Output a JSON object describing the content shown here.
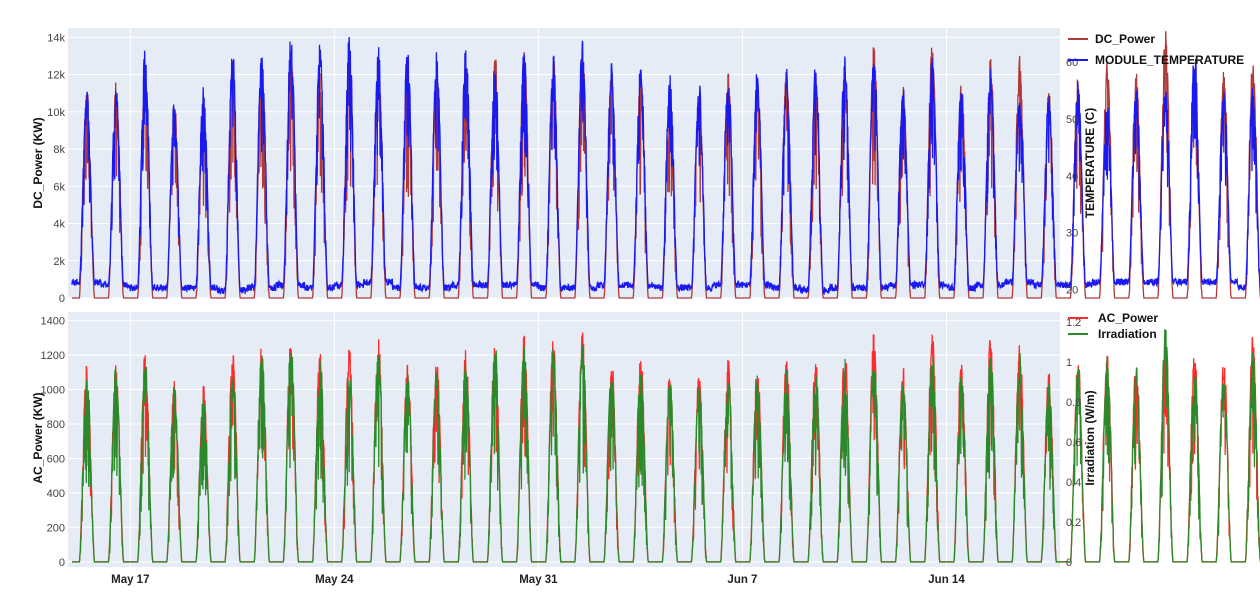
{
  "chart_data": [
    {
      "type": "line",
      "xlabel": "",
      "ylabel": "DC_Power (KW)",
      "y2label": "TEMPERATURE (C)",
      "ylim": [
        0,
        14500
      ],
      "y2lim": [
        18.5,
        66
      ],
      "y_ticks": [
        0,
        2000,
        4000,
        6000,
        8000,
        10000,
        12000,
        14000
      ],
      "y_tick_labels": [
        "0",
        "2k",
        "4k",
        "6k",
        "8k",
        "10k",
        "12k",
        "14k"
      ],
      "y2_ticks": [
        20,
        30,
        40,
        50,
        60
      ],
      "y2_tick_labels": [
        "20",
        "30",
        "40",
        "50",
        "60"
      ],
      "legend_position": "top-right",
      "grid": true,
      "series": [
        {
          "name": "DC_Power",
          "axis": "y",
          "color": "#b03a3a",
          "daily_peak": [
            11900,
            11800,
            12500,
            10800,
            10500,
            12900,
            12300,
            13300,
            12400,
            13400,
            13100,
            11900,
            12600,
            12800,
            13300,
            13600,
            13200,
            13800,
            12400,
            12300,
            11400,
            11200,
            12100,
            11800,
            12400,
            12300,
            12800,
            13700,
            11700,
            13800,
            12100,
            13400,
            13100,
            11300,
            12200,
            12800,
            12500,
            14500,
            12500,
            12300,
            13100
          ]
        },
        {
          "name": "MODULE_TEMPERATURE",
          "axis": "y2",
          "color": "#1a1aee",
          "daily_min": [
            21,
            20.5,
            20,
            20,
            20,
            19.5,
            20,
            20.5,
            20,
            20.5,
            21,
            20,
            20,
            20.5,
            20.5,
            20.5,
            20,
            20,
            20.5,
            20.5,
            20,
            20,
            20.5,
            20.5,
            20,
            19.5,
            20,
            20,
            20.5,
            20.5,
            20,
            20.5,
            21,
            20.5,
            20.5,
            21,
            21,
            21,
            21,
            21,
            20
          ],
          "daily_peak": [
            55,
            56,
            63,
            53,
            56,
            63,
            62,
            65,
            64,
            66,
            63,
            63,
            62,
            63,
            61,
            63,
            62,
            64,
            60,
            60,
            58,
            57,
            59,
            59,
            59,
            61,
            61,
            62,
            56,
            61,
            57,
            59,
            55,
            55,
            57,
            53,
            56,
            56,
            63,
            56,
            57
          ]
        }
      ]
    },
    {
      "type": "line",
      "xlabel": "",
      "ylabel": "AC_Power (KW)",
      "y2label": "Irradiation (W/m)",
      "ylim": [
        -30,
        1450
      ],
      "y2lim": [
        -0.025,
        1.25
      ],
      "y_ticks": [
        0,
        200,
        400,
        600,
        800,
        1000,
        1200,
        1400
      ],
      "y_tick_labels": [
        "0",
        "200",
        "400",
        "600",
        "800",
        "1000",
        "1200",
        "1400"
      ],
      "y2_ticks": [
        0,
        0.2,
        0.4,
        0.6,
        0.8,
        1.0,
        1.2
      ],
      "y2_tick_labels": [
        "0",
        "0.2",
        "0.4",
        "0.6",
        "0.8",
        "1",
        "1.2"
      ],
      "x_tick_labels": [
        "May 17",
        "May 24",
        "May 31",
        "Jun 7",
        "Jun 14"
      ],
      "x_range": [
        "2020-05-15",
        "2020-06-18"
      ],
      "legend_position": "top-right",
      "grid": true,
      "series": [
        {
          "name": "AC_Power",
          "axis": "y",
          "color": "#ff2a2a",
          "daily_peak": [
            1160,
            1160,
            1230,
            1060,
            1020,
            1250,
            1290,
            1340,
            1240,
            1260,
            1310,
            1160,
            1200,
            1240,
            1300,
            1330,
            1300,
            1340,
            1200,
            1200,
            1110,
            1100,
            1180,
            1160,
            1200,
            1200,
            1260,
            1340,
            1140,
            1350,
            1180,
            1310,
            1280,
            1110,
            1200,
            1250,
            1210,
            1350,
            1220,
            1200,
            1340
          ]
        },
        {
          "name": "Irradiation",
          "axis": "y2",
          "color": "#2a8a2a",
          "daily_peak": [
            0.97,
            0.99,
            1.03,
            0.89,
            0.86,
            0.96,
            1.07,
            1.12,
            1.03,
            0.98,
            1.09,
            0.96,
            0.99,
            1.02,
            1.12,
            1.13,
            1.1,
            1.12,
            0.99,
            1.0,
            0.93,
            0.91,
            0.97,
            0.95,
            1.0,
            0.99,
            1.04,
            1.09,
            0.92,
            1.09,
            0.97,
            1.08,
            1.05,
            0.92,
            0.99,
            1.03,
            0.99,
            1.21,
            1.01,
            0.98,
            1.08
          ]
        }
      ]
    }
  ]
}
